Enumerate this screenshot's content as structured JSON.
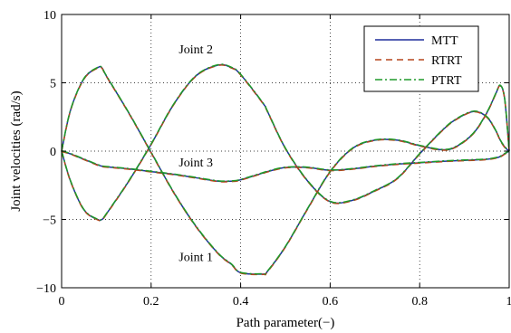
{
  "chart_data": {
    "type": "line",
    "xlabel": "Path parameter(−)",
    "ylabel": "Joint velocities (rad/s)",
    "xlim": [
      0,
      1
    ],
    "ylim": [
      -10,
      10
    ],
    "x_ticks": [
      0,
      0.2,
      0.4,
      0.6,
      0.8,
      1
    ],
    "x_tick_labels": [
      "0",
      "0.2",
      "0.4",
      "0.6",
      "0.8",
      "1"
    ],
    "y_ticks": [
      -10,
      -5,
      0,
      5,
      10
    ],
    "y_tick_labels": [
      "−10",
      "−5",
      "0",
      "5",
      "10"
    ],
    "grid": true,
    "legend_position": "top-right",
    "legend": [
      "MTT",
      "RTRT",
      "PTRT"
    ],
    "colors": {
      "MTT": "#1f2f9c",
      "RTRT": "#b5451b",
      "PTRT": "#1f9a2a"
    },
    "annotations": [
      {
        "text": "Joint 2",
        "x": 0.3,
        "y": 7.5
      },
      {
        "text": "Joint 3",
        "x": 0.3,
        "y": -0.8
      },
      {
        "text": "Joint 1",
        "x": 0.3,
        "y": -7.7
      }
    ],
    "x": [
      0,
      0.02,
      0.05,
      0.08,
      0.09,
      0.1,
      0.15,
      0.2,
      0.25,
      0.3,
      0.35,
      0.38,
      0.4,
      0.45,
      0.46,
      0.5,
      0.55,
      0.6,
      0.65,
      0.7,
      0.75,
      0.8,
      0.85,
      0.88,
      0.92,
      0.95,
      0.97,
      0.98,
      0.99,
      1.0
    ],
    "series": [
      {
        "name": "Joint 1",
        "values": [
          0,
          3.0,
          5.3,
          6.1,
          6.1,
          5.5,
          2.8,
          -0.1,
          -3.0,
          -5.5,
          -7.5,
          -8.3,
          -8.9,
          -9.0,
          -8.8,
          -7.0,
          -4.2,
          -1.5,
          0.2,
          0.8,
          0.8,
          0.4,
          0.1,
          0.3,
          1.3,
          2.8,
          4.2,
          4.8,
          3.8,
          0.0
        ]
      },
      {
        "name": "Joint 2",
        "values": [
          0,
          -2.2,
          -4.3,
          -5.0,
          -5.0,
          -4.6,
          -2.2,
          0.5,
          3.4,
          5.5,
          6.3,
          6.1,
          5.6,
          3.5,
          2.9,
          0.2,
          -2.2,
          -3.7,
          -3.6,
          -2.9,
          -2.0,
          -0.2,
          1.5,
          2.3,
          2.9,
          2.5,
          1.5,
          0.8,
          0.3,
          0.0
        ]
      },
      {
        "name": "Joint 3",
        "values": [
          0,
          -0.2,
          -0.6,
          -1.0,
          -1.1,
          -1.15,
          -1.3,
          -1.5,
          -1.7,
          -1.95,
          -2.2,
          -2.2,
          -2.1,
          -1.6,
          -1.5,
          -1.2,
          -1.2,
          -1.4,
          -1.3,
          -1.1,
          -0.95,
          -0.85,
          -0.75,
          -0.7,
          -0.65,
          -0.6,
          -0.5,
          -0.4,
          -0.2,
          0.0
        ]
      }
    ]
  }
}
